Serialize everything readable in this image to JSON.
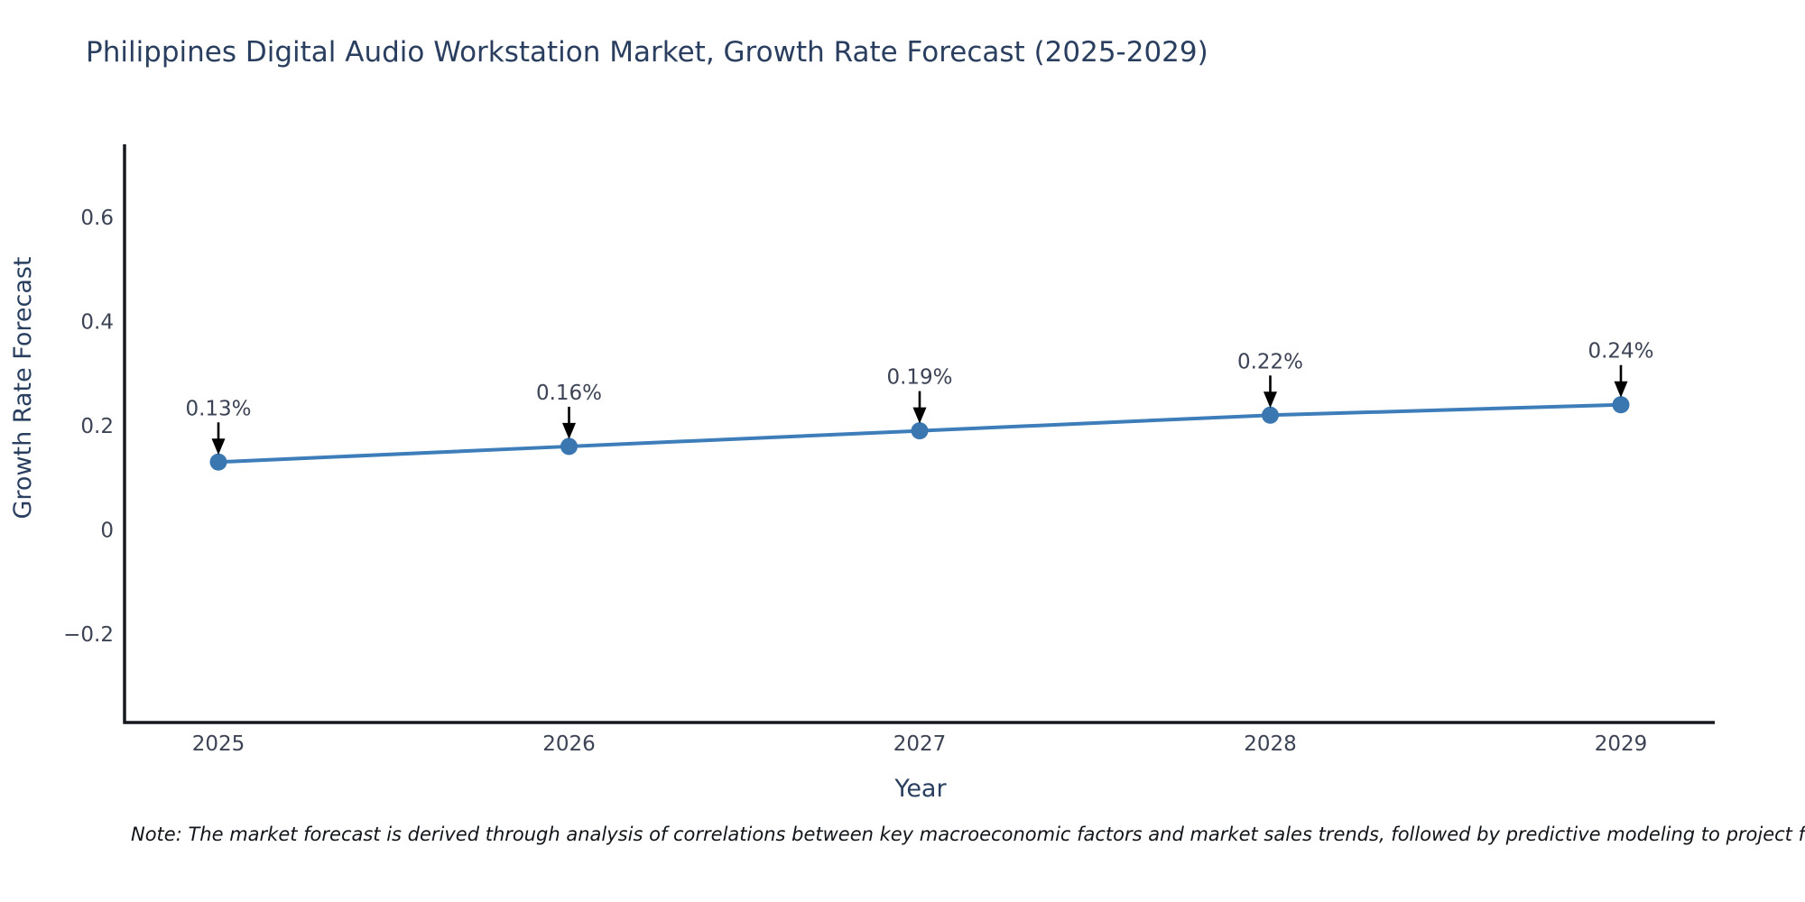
{
  "title": "Philippines Digital Audio Workstation Market, Growth Rate Forecast (2025-2029)",
  "note": "Note: The market forecast is derived through analysis of correlations between key macroeconomic factors and market sales trends, followed by predictive modeling to project future sa",
  "chart_data": {
    "type": "line",
    "title": "Philippines Digital Audio Workstation Market, Growth Rate Forecast (2025-2029)",
    "categories": [
      "2025",
      "2026",
      "2027",
      "2028",
      "2029"
    ],
    "series": [
      {
        "name": "Growth Rate Forecast",
        "values": [
          0.13,
          0.16,
          0.19,
          0.22,
          0.24
        ]
      }
    ],
    "point_labels": [
      "0.13%",
      "0.16%",
      "0.19%",
      "0.22%",
      "0.24%"
    ],
    "xlabel": "Year",
    "ylabel": "Growth Rate Forecast",
    "yticks": [
      0.6,
      0.4,
      0.2,
      0,
      -0.2
    ],
    "ytick_labels": [
      "0.6",
      "0.4",
      "0.2",
      "0",
      "−0.2"
    ],
    "ylim": [
      -0.37,
      0.74
    ],
    "grid": false,
    "legend": false,
    "colors": {
      "line": "#3d7dba",
      "marker": "#3a77b0",
      "axis": "#16191f",
      "title_text": "#2a3f5f",
      "tick_text": "#3c4354",
      "annotation_text": "#3c4354",
      "arrow": "#000000"
    }
  }
}
